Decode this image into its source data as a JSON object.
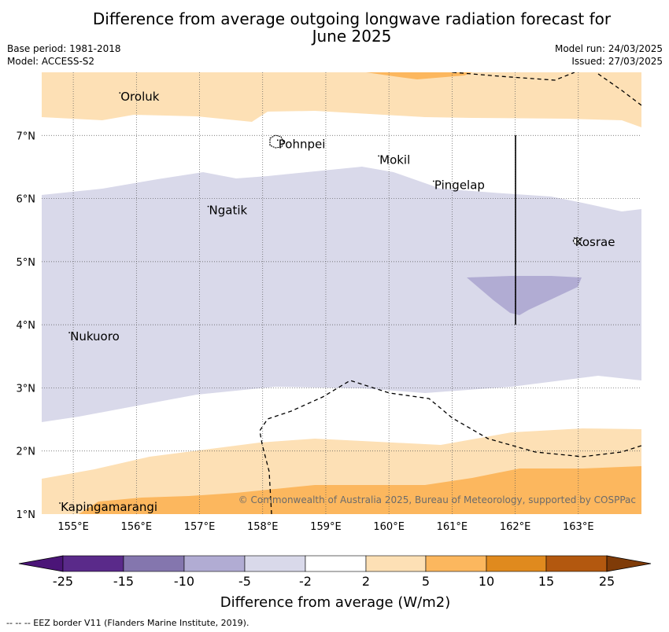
{
  "title": {
    "line1": "Difference from average outgoing longwave radiation forecast for",
    "line2": "June 2025"
  },
  "meta": {
    "base_period": "Base period: 1981-2018",
    "model": "Model: ACCESS-S2",
    "model_run": "Model run: 24/03/2025",
    "issued": "Issued: 27/03/2025"
  },
  "map": {
    "lon_range": [
      154.5,
      164.0
    ],
    "lat_range": [
      1.0,
      8.0
    ],
    "lon_ticks": [
      "155°E",
      "156°E",
      "157°E",
      "158°E",
      "159°E",
      "160°E",
      "161°E",
      "162°E",
      "163°E"
    ],
    "lat_ticks": [
      "1°N",
      "2°N",
      "3°N",
      "4°N",
      "5°N",
      "6°N",
      "7°N"
    ],
    "grid": true,
    "places": [
      {
        "name": "Oroluk",
        "lon": 155.75,
        "lat": 7.6
      },
      {
        "name": "Pohnpei",
        "lon": 158.25,
        "lat": 6.85
      },
      {
        "name": "Mokil",
        "lon": 159.85,
        "lat": 6.6
      },
      {
        "name": "Pingelap",
        "lon": 160.72,
        "lat": 6.2
      },
      {
        "name": "Ngatik",
        "lon": 157.15,
        "lat": 5.8
      },
      {
        "name": "Kosrae",
        "lon": 162.95,
        "lat": 5.3
      },
      {
        "name": "Nukuoro",
        "lon": 154.95,
        "lat": 3.8
      },
      {
        "name": "Kapingamarangi",
        "lon": 154.8,
        "lat": 1.1
      }
    ],
    "copyright": "© Commonwealth of Australia 2025, Bureau of Meteorology, supported by COSPPac",
    "colors": {
      "pos_2_5": "#fde0b5",
      "pos_5_10": "#fcb75e",
      "neg_2_5": "#d9d9ea",
      "neg_5_10": "#b1acd3"
    }
  },
  "colorbar": {
    "labels": [
      "-25",
      "-15",
      "-10",
      "-5",
      "-2",
      "2",
      "5",
      "10",
      "15",
      "25"
    ],
    "colors": [
      "#4b1578",
      "#5a2a8a",
      "#8476ae",
      "#b1acd3",
      "#d9d9ea",
      "#ffffff",
      "#fde0b5",
      "#fcb75e",
      "#e08a1e",
      "#b3580f",
      "#7f3b08"
    ],
    "title": "Difference from average (W/m2)"
  },
  "footer": "--  --  -- EEZ border V11 (Flanders Marine Institute, 2019)."
}
